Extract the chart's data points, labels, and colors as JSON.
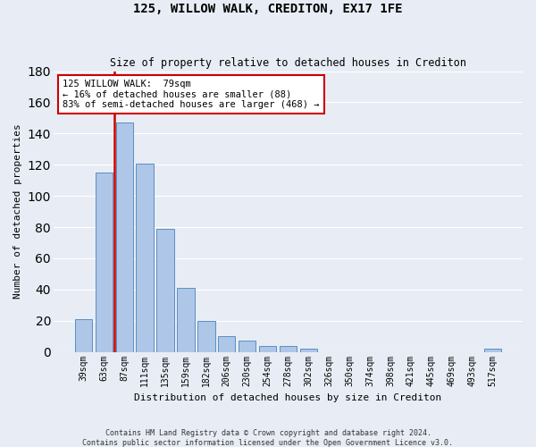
{
  "title": "125, WILLOW WALK, CREDITON, EX17 1FE",
  "subtitle": "Size of property relative to detached houses in Crediton",
  "xlabel": "Distribution of detached houses by size in Crediton",
  "ylabel": "Number of detached properties",
  "bar_values": [
    21,
    115,
    147,
    121,
    79,
    41,
    20,
    10,
    7,
    4,
    4,
    2,
    0,
    0,
    0,
    0,
    0,
    0,
    0,
    0,
    2
  ],
  "bar_labels": [
    "39sqm",
    "63sqm",
    "87sqm",
    "111sqm",
    "135sqm",
    "159sqm",
    "182sqm",
    "206sqm",
    "230sqm",
    "254sqm",
    "278sqm",
    "302sqm",
    "326sqm",
    "350sqm",
    "374sqm",
    "398sqm",
    "421sqm",
    "445sqm",
    "469sqm",
    "493sqm",
    "517sqm"
  ],
  "bar_color": "#aec6e8",
  "bar_edge_color": "#5a8fc0",
  "subject_line_color": "#cc0000",
  "annotation_text_line1": "125 WILLOW WALK:  79sqm",
  "annotation_text_line2": "← 16% of detached houses are smaller (88)",
  "annotation_text_line3": "83% of semi-detached houses are larger (468) →",
  "annotation_box_color": "#cc0000",
  "ylim": [
    0,
    180
  ],
  "yticks": [
    0,
    20,
    40,
    60,
    80,
    100,
    120,
    140,
    160,
    180
  ],
  "background_color": "#e8edf5",
  "grid_color": "#ffffff",
  "footer_line1": "Contains HM Land Registry data © Crown copyright and database right 2024.",
  "footer_line2": "Contains public sector information licensed under the Open Government Licence v3.0."
}
